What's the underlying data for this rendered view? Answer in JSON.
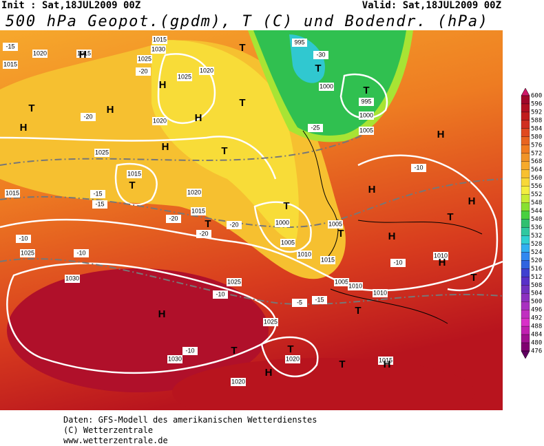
{
  "header": {
    "init": "Init : Sat,18JUL2009 00Z",
    "valid": "Valid: Sat,18JUL2009 00Z",
    "title": "500 hPa Geopot.(gpdm), T (C) und Bodendr. (hPa)"
  },
  "map": {
    "labels": [
      "-15",
      "1020",
      "1015",
      "1015",
      "H",
      "1015",
      "1030",
      "1025",
      "H",
      "H",
      "T",
      "T",
      "-20",
      "1020",
      "H",
      "1025",
      "1020",
      "T",
      "1025",
      "H",
      "T",
      "H",
      "-20",
      "1015",
      "T",
      "1015",
      "1020",
      "-15",
      "-20",
      "1015",
      "T",
      "-20",
      "-20",
      "1000",
      "1005",
      "T",
      "1005",
      "-15",
      "1010",
      "1015",
      "T",
      "1005",
      "H",
      "T",
      "-10",
      "-10",
      "1025",
      "1030",
      "H",
      "-5",
      "1025",
      "1030",
      "1020",
      "T",
      "T",
      "1020",
      "T",
      "-10",
      "1015",
      "H",
      "H",
      "T",
      "1010",
      "T",
      "H",
      "-10",
      "H",
      "H",
      "-10",
      "1000",
      "995",
      "T",
      "995",
      "1000",
      "T",
      "1005",
      "H",
      "-25",
      "-30",
      "1025",
      "-10",
      "-15",
      "1010",
      "1010"
    ]
  },
  "colorbar": {
    "ticks": [
      600,
      596,
      592,
      588,
      584,
      580,
      576,
      572,
      568,
      564,
      560,
      556,
      552,
      548,
      544,
      540,
      536,
      532,
      528,
      524,
      520,
      516,
      512,
      508,
      504,
      500,
      496,
      492,
      488,
      484,
      480,
      476
    ],
    "colors": [
      "#d01868",
      "#a0082a",
      "#b01022",
      "#c01c1c",
      "#d03020",
      "#e04a20",
      "#e86420",
      "#f07c20",
      "#f09428",
      "#f6aa2c",
      "#f8c030",
      "#f8d838",
      "#f4ee40",
      "#c8ec34",
      "#88e030",
      "#48d040",
      "#30c070",
      "#30c8a0",
      "#30d0d0",
      "#30b0f0",
      "#3088f0",
      "#3064e0",
      "#4040d0",
      "#5830c8",
      "#7030c0",
      "#8c30c0",
      "#a830c0",
      "#c030c0",
      "#d830c8",
      "#c020b0",
      "#a01090",
      "#800070",
      "#600060"
    ]
  },
  "footer": {
    "lines": [
      "Daten: GFS-Modell des amerikanischen Wetterdienstes",
      "(C) Wetterzentrale",
      "www.wetterzentrale.de"
    ]
  }
}
